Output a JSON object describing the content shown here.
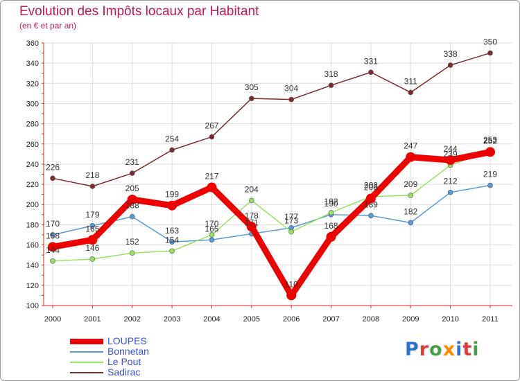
{
  "title": "Evolution des Impôts locaux par Habitant",
  "subtitle": "(en € et par an)",
  "logo": "Proxiti",
  "logo_colors": [
    "#2e6fd1",
    "#e53935",
    "#43a047",
    "#fb8c00",
    "#2e6fd1",
    "#e53935",
    "#43a047"
  ],
  "chart_data": {
    "type": "line",
    "title": "Evolution des Impôts locaux par Habitant",
    "xlabel": "",
    "ylabel": "(en € et par an)",
    "categories": [
      "2000",
      "2001",
      "2002",
      "2003",
      "2004",
      "2005",
      "2006",
      "2007",
      "2008",
      "2009",
      "2010",
      "2011"
    ],
    "ylim": [
      100,
      360
    ],
    "yticks": [
      "100",
      "120",
      "140",
      "160",
      "180",
      "200",
      "220",
      "240",
      "260",
      "280",
      "300",
      "320",
      "340",
      "360"
    ],
    "legend_position": "bottom-left",
    "grid": true,
    "series": [
      {
        "name": "LOUPES",
        "color": "#ee0000",
        "values": [
          158,
          165,
          205,
          199,
          217,
          178,
          110,
          168,
          206,
          247,
          244,
          252
        ],
        "labels": [
          "158",
          "165",
          "205",
          "199",
          "217",
          "178",
          "110",
          "168",
          "206",
          "247",
          "244",
          "252"
        ]
      },
      {
        "name": "Bonnetan",
        "color": "#5b9bd5",
        "values": [
          170,
          179,
          188,
          163,
          165,
          171,
          177,
          190,
          189,
          182,
          212,
          219
        ],
        "labels": [
          "170",
          "179",
          "188",
          "163",
          "165",
          "171",
          "177",
          "190",
          "189",
          "182",
          "212",
          "219"
        ]
      },
      {
        "name": "Le Pout",
        "color": "#99e066",
        "values": [
          144,
          146,
          152,
          154,
          170,
          204,
          173,
          192,
          208,
          209,
          239,
          253
        ],
        "labels": [
          "144",
          "146",
          "152",
          "154",
          "170",
          "204",
          "173",
          "192",
          "208",
          "209",
          "239",
          "253"
        ]
      },
      {
        "name": "Sadirac",
        "color": "#7b2d2d",
        "values": [
          226,
          218,
          231,
          254,
          267,
          305,
          304,
          318,
          331,
          311,
          338,
          350
        ],
        "labels": [
          "226",
          "218",
          "231",
          "254",
          "267",
          "305",
          "304",
          "318",
          "331",
          "311",
          "338",
          "350"
        ]
      }
    ]
  }
}
